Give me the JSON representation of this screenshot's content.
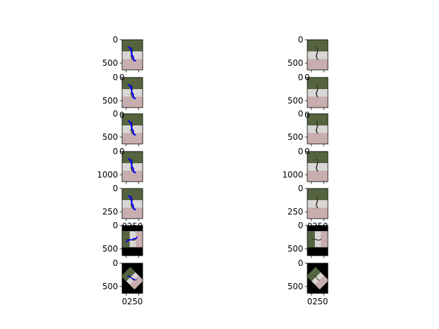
{
  "colors": {
    "pose_line": "#0000ff",
    "foliage": "#55643f",
    "wall": "#d9d7d6",
    "floor": "#c8aeae",
    "person": "#3a3434",
    "padding": "#000000",
    "axis": "#000000"
  },
  "chart_data": {
    "type": "image-grid",
    "rows": 7,
    "columns": 2,
    "panels": [
      {
        "row": 0,
        "col": 0,
        "content": "image-with-pose-overlay",
        "orientation": "upright",
        "yticks": [
          "0",
          "500"
        ],
        "xticks": []
      },
      {
        "row": 0,
        "col": 1,
        "content": "image",
        "orientation": "upright",
        "yticks": [
          "0",
          "500"
        ],
        "xticks": []
      },
      {
        "row": 1,
        "col": 0,
        "content": "image-with-pose-overlay",
        "orientation": "upright",
        "yticks": [
          "0",
          "500"
        ],
        "xticks": []
      },
      {
        "row": 1,
        "col": 1,
        "content": "image",
        "orientation": "upright",
        "yticks": [
          "0",
          "500"
        ],
        "xticks": []
      },
      {
        "row": 2,
        "col": 0,
        "content": "image-with-pose-overlay",
        "orientation": "upright",
        "yticks": [
          "0",
          "500"
        ],
        "xticks": []
      },
      {
        "row": 2,
        "col": 1,
        "content": "image",
        "orientation": "upright",
        "yticks": [
          "0",
          "500"
        ],
        "xticks": []
      },
      {
        "row": 3,
        "col": 0,
        "content": "image-with-pose-overlay",
        "orientation": "upright",
        "yticks": [
          "0",
          "1000"
        ],
        "xticks": []
      },
      {
        "row": 3,
        "col": 1,
        "content": "image",
        "orientation": "upright",
        "yticks": [
          "0",
          "1000"
        ],
        "xticks": []
      },
      {
        "row": 4,
        "col": 0,
        "content": "image-with-pose-overlay",
        "orientation": "upright",
        "yticks": [
          "0",
          "250"
        ],
        "xticks": []
      },
      {
        "row": 4,
        "col": 1,
        "content": "image",
        "orientation": "upright",
        "yticks": [
          "0",
          "250"
        ],
        "xticks": []
      },
      {
        "row": 5,
        "col": 0,
        "content": "image-with-pose-overlay",
        "orientation": "rotated-90",
        "yticks": [
          "0",
          "500"
        ],
        "xticks": []
      },
      {
        "row": 5,
        "col": 1,
        "content": "image",
        "orientation": "rotated-90",
        "yticks": [
          "0",
          "500"
        ],
        "xticks": []
      },
      {
        "row": 6,
        "col": 0,
        "content": "image-with-pose-overlay",
        "orientation": "rotated-45",
        "yticks": [
          "0",
          "500"
        ],
        "xticks": [
          "0250"
        ]
      },
      {
        "row": 6,
        "col": 1,
        "content": "image",
        "orientation": "rotated-45",
        "yticks": [
          "0",
          "500"
        ],
        "xticks": [
          "0250"
        ]
      }
    ],
    "overlap_labels": [
      {
        "row": 0,
        "col": 0,
        "text": "0"
      },
      {
        "row": 0,
        "col": 1,
        "text": "0"
      },
      {
        "row": 1,
        "col": 0,
        "text": "0"
      },
      {
        "row": 1,
        "col": 1,
        "text": "0"
      },
      {
        "row": 2,
        "col": 0,
        "text": "0"
      },
      {
        "row": 2,
        "col": 1,
        "text": "0"
      },
      {
        "row": 4,
        "col": 0,
        "text": "0250"
      },
      {
        "row": 4,
        "col": 1,
        "text": "0250"
      }
    ]
  }
}
